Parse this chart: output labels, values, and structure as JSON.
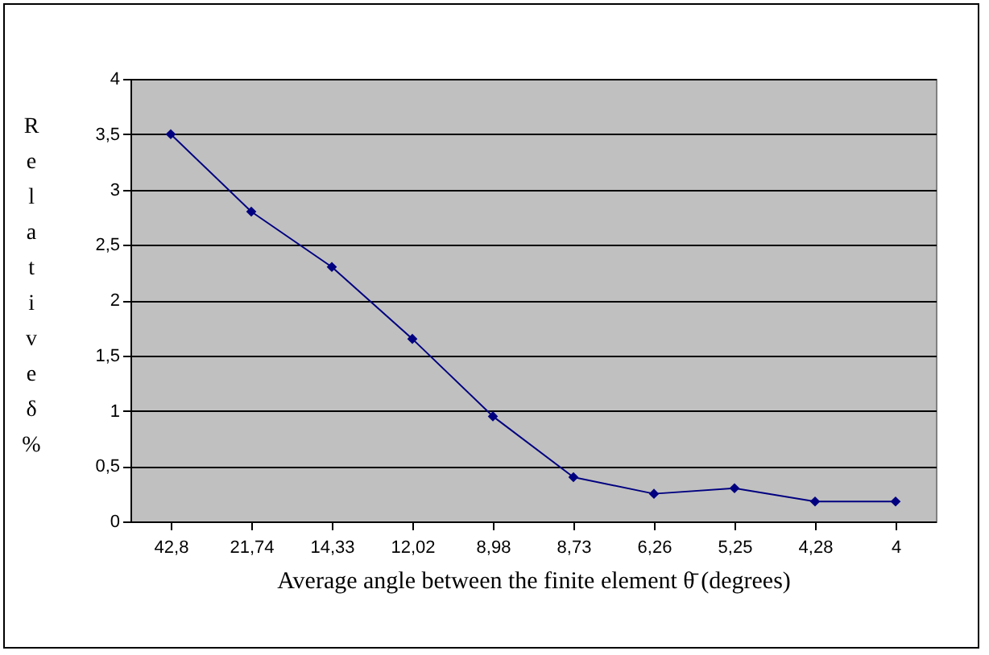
{
  "chart_data": {
    "type": "line",
    "xlabel": "Average angle between the finite element θ̄ (degrees)",
    "ylabel": "Relative δ %",
    "categories": [
      "42,8",
      "21,74",
      "14,33",
      "12,02",
      "8,98",
      "8,73",
      "6,26",
      "5,25",
      "4,28",
      "4"
    ],
    "series": [
      {
        "color": "#000080",
        "values": [
          3.5,
          2.8,
          2.3,
          1.65,
          0.95,
          0.4,
          0.25,
          0.3,
          0.18,
          0.18
        ]
      }
    ],
    "ylim": [
      0,
      4
    ],
    "yticks": [
      0,
      {
        "value": 0.5,
        "label": "0,5"
      },
      1,
      {
        "value": 1.5,
        "label": "1,5"
      },
      2,
      {
        "value": 2.5,
        "label": "2,5"
      },
      3,
      {
        "value": 3.5,
        "label": "3,5"
      },
      4
    ],
    "grid": "y",
    "marker": "diamond",
    "line_style": "solid"
  }
}
